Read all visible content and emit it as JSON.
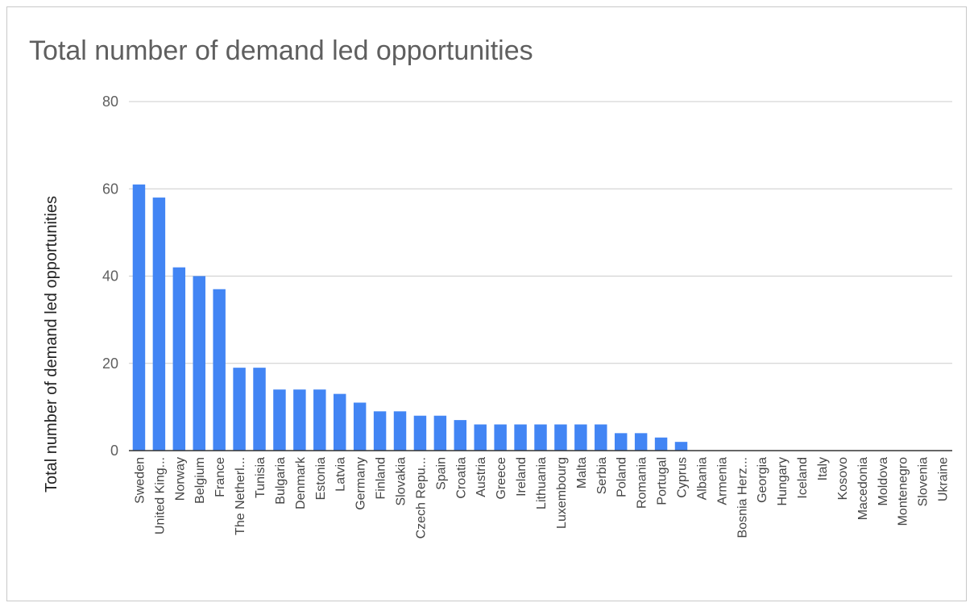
{
  "chart_data": {
    "type": "bar",
    "title": "Total number of demand led opportunities",
    "xlabel": "",
    "ylabel": "Total number of demand led opportunities",
    "ylim": [
      0,
      80
    ],
    "yticks": [
      0,
      20,
      40,
      60,
      80
    ],
    "grid": true,
    "legend": "none",
    "bar_color": "#4285f4",
    "categories": [
      "Sweden",
      "United King...",
      "Norway",
      "Belgium",
      "France",
      "The Netherl...",
      "Tunisia",
      "Bulgaria",
      "Denmark",
      "Estonia",
      "Latvia",
      "Germany",
      "Finland",
      "Slovakia",
      "Czech Repu...",
      "Spain",
      "Croatia",
      "Austria",
      "Greece",
      "Ireland",
      "Lithuania",
      "Luxembourg",
      "Malta",
      "Serbia",
      "Poland",
      "Romania",
      "Portugal",
      "Cyprus",
      "Albania",
      "Armenia",
      "Bosnia Herz...",
      "Georgia",
      "Hungary",
      "Iceland",
      "Italy",
      "Kosovo",
      "Macedonia",
      "Moldova",
      "Montenegro",
      "Slovenia",
      "Ukraine"
    ],
    "values": [
      61,
      58,
      42,
      40,
      37,
      19,
      19,
      14,
      14,
      14,
      13,
      11,
      9,
      9,
      8,
      8,
      7,
      6,
      6,
      6,
      6,
      6,
      6,
      6,
      4,
      4,
      3,
      2,
      0,
      0,
      0,
      0,
      0,
      0,
      0,
      0,
      0,
      0,
      0,
      0,
      0
    ]
  }
}
